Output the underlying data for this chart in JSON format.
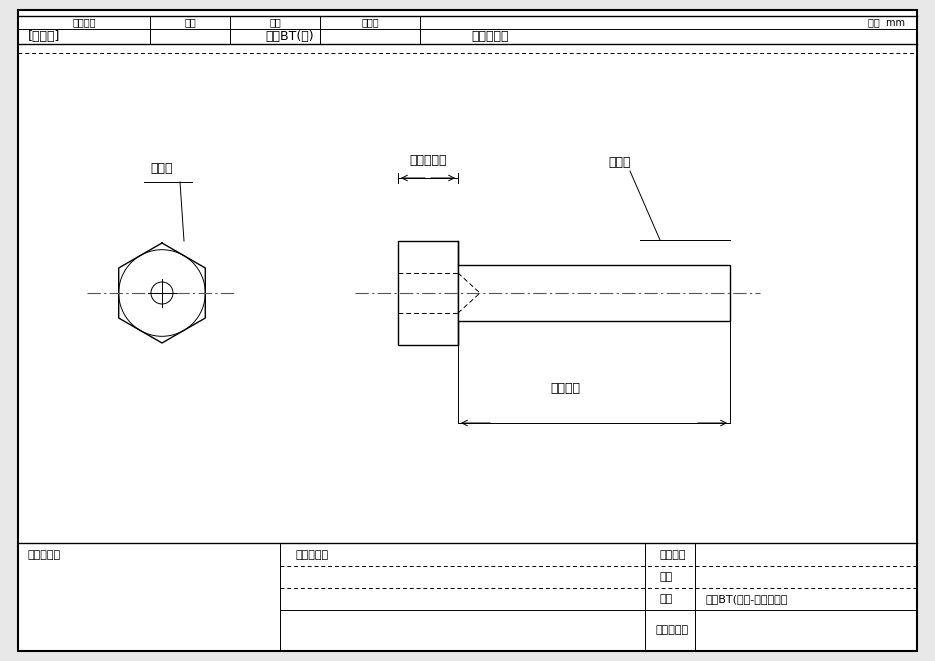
{
  "bg_color": "#e8e8e8",
  "paper_color": "#ffffff",
  "line_color": "#000000",
  "title_row1": [
    "表面処理",
    "材質",
    "品名",
    "サイズ",
    "単位  mm"
  ],
  "title_row2": [
    "[支給品]",
    "六角BT(半)",
    "より追加工"
  ],
  "label_neji_left": "ねじ径",
  "label_tap_depth": "タップ深さ",
  "label_neji_right": "ねじ径",
  "label_shita_length": "首下長さ",
  "footer_col1_label": "部署・氏名",
  "footer_col2_label": "見積り情報",
  "footer_col3_label": "表面処理",
  "footer_row2_label": "材質",
  "footer_row3_label": "品名",
  "footer_row3_value": "六角BT(半）-頭部タップ",
  "footer_row4_value": "㈱吉川商工"
}
